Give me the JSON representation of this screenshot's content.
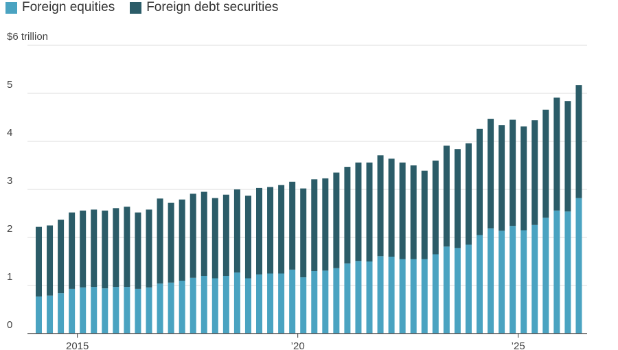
{
  "legend": [
    {
      "label": "Foreign equities",
      "color": "#4aa3c1"
    },
    {
      "label": "Foreign debt securities",
      "color": "#2b5c68"
    }
  ],
  "chart_data": {
    "type": "bar",
    "stacked": true,
    "title": "",
    "xlabel": "",
    "ylabel": "",
    "ylim": [
      0,
      6
    ],
    "y_ticks": [
      {
        "value": 0,
        "label": "0"
      },
      {
        "value": 1,
        "label": "1"
      },
      {
        "value": 2,
        "label": "2"
      },
      {
        "value": 3,
        "label": "3"
      },
      {
        "value": 4,
        "label": "4"
      },
      {
        "value": 5,
        "label": "5"
      },
      {
        "value": 6,
        "label": "$6 trillion"
      }
    ],
    "x_ticks": [
      {
        "index": 4,
        "label": "2015"
      },
      {
        "index": 24,
        "label": "’20"
      },
      {
        "index": 44,
        "label": "’25"
      }
    ],
    "grid": true,
    "legend_position": "top-left",
    "series": [
      {
        "name": "Foreign equities",
        "color": "#4aa3c1",
        "values": [
          0.77,
          0.79,
          0.84,
          0.93,
          0.96,
          0.97,
          0.94,
          0.97,
          0.97,
          0.93,
          0.96,
          1.04,
          1.06,
          1.1,
          1.16,
          1.2,
          1.15,
          1.2,
          1.27,
          1.15,
          1.23,
          1.25,
          1.25,
          1.33,
          1.17,
          1.3,
          1.31,
          1.36,
          1.46,
          1.51,
          1.5,
          1.61,
          1.6,
          1.55,
          1.55,
          1.55,
          1.65,
          1.81,
          1.78,
          1.85,
          2.05,
          2.19,
          2.14,
          2.24,
          2.15,
          2.26,
          2.41,
          2.56,
          2.54,
          2.82
        ]
      },
      {
        "name": "Foreign debt securities",
        "color": "#2b5c68",
        "values": [
          1.45,
          1.46,
          1.53,
          1.59,
          1.6,
          1.61,
          1.62,
          1.64,
          1.67,
          1.59,
          1.62,
          1.77,
          1.66,
          1.69,
          1.75,
          1.75,
          1.67,
          1.69,
          1.73,
          1.72,
          1.8,
          1.8,
          1.84,
          1.83,
          1.85,
          1.91,
          1.92,
          1.99,
          2.01,
          2.05,
          2.06,
          2.1,
          2.04,
          2.01,
          1.95,
          1.84,
          1.95,
          2.1,
          2.06,
          2.11,
          2.21,
          2.28,
          2.2,
          2.21,
          2.16,
          2.18,
          2.25,
          2.35,
          2.3,
          2.35
        ]
      }
    ]
  }
}
